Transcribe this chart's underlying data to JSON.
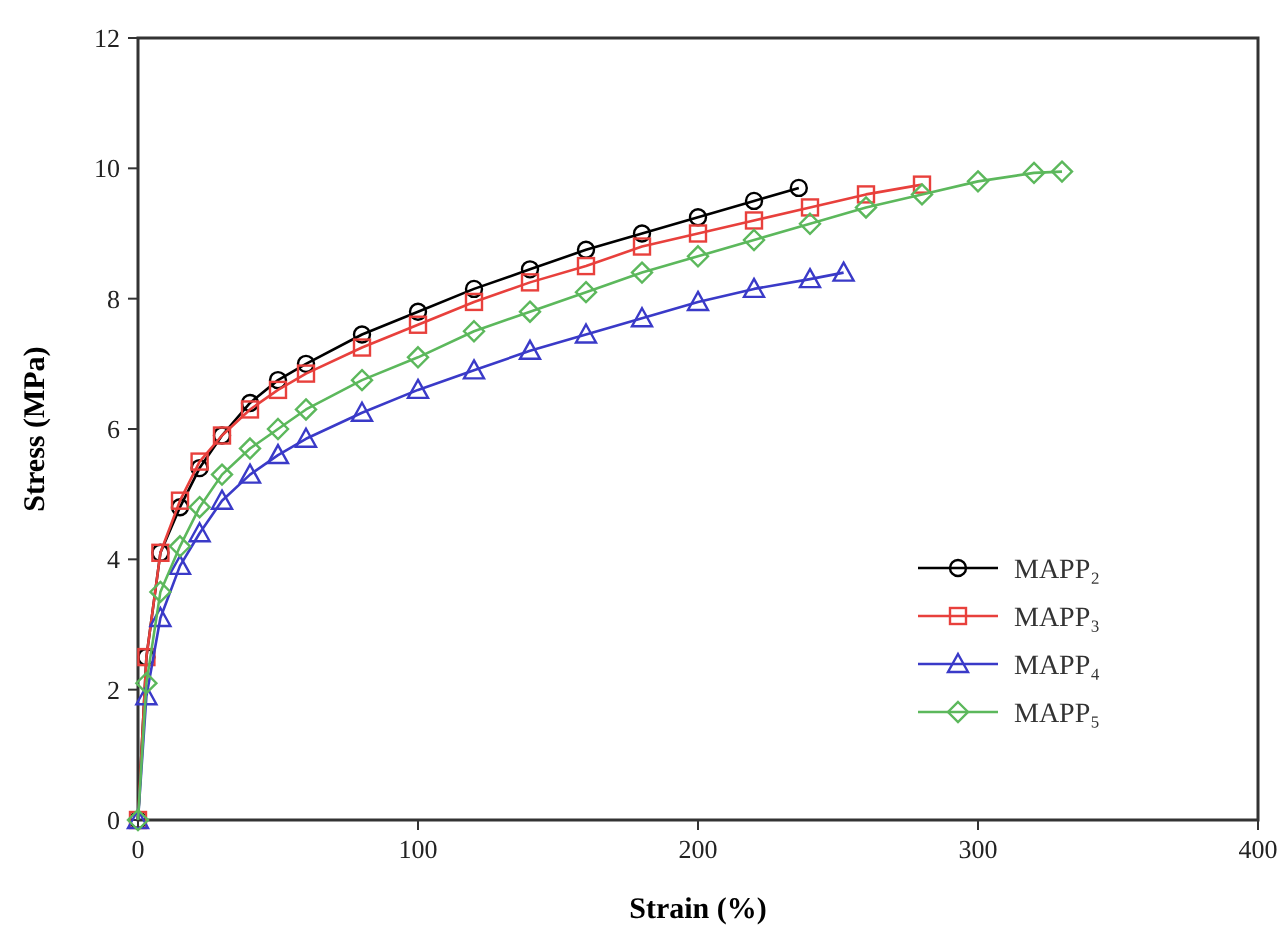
{
  "chart_data": {
    "type": "line",
    "xlabel": "Strain (%)",
    "ylabel": "Stress (MPa)",
    "xlim": [
      0,
      400
    ],
    "xticks": [
      0,
      100,
      200,
      300,
      400
    ],
    "ylim": [
      0,
      12
    ],
    "yticks": [
      0,
      2,
      4,
      6,
      8,
      10,
      12
    ],
    "grid": false,
    "legend": "bottom right",
    "series": [
      {
        "name": "MAPP₂",
        "color": "#000000",
        "marker": "circle",
        "x": [
          0,
          3,
          8,
          15,
          22,
          30,
          40,
          50,
          60,
          80,
          100,
          120,
          140,
          160,
          180,
          200,
          220,
          236
        ],
        "values": [
          0,
          2.5,
          4.1,
          4.8,
          5.4,
          5.9,
          6.4,
          6.75,
          7.0,
          7.45,
          7.8,
          8.15,
          8.45,
          8.75,
          9.0,
          9.25,
          9.5,
          9.7
        ]
      },
      {
        "name": "MAPP₃",
        "color": "#e8403c",
        "marker": "square",
        "x": [
          0,
          3,
          8,
          15,
          22,
          30,
          40,
          50,
          60,
          80,
          100,
          120,
          140,
          160,
          180,
          200,
          220,
          240,
          260,
          280
        ],
        "values": [
          0,
          2.5,
          4.1,
          4.9,
          5.5,
          5.9,
          6.3,
          6.6,
          6.85,
          7.25,
          7.6,
          7.95,
          8.25,
          8.5,
          8.8,
          9.0,
          9.2,
          9.4,
          9.6,
          9.75
        ]
      },
      {
        "name": "MAPP₄",
        "color": "#3a3ac8",
        "marker": "triangle",
        "x": [
          0,
          3,
          8,
          15,
          22,
          30,
          40,
          50,
          60,
          80,
          100,
          120,
          140,
          160,
          180,
          200,
          220,
          240,
          252
        ],
        "values": [
          0,
          1.9,
          3.1,
          3.9,
          4.4,
          4.9,
          5.3,
          5.6,
          5.85,
          6.25,
          6.6,
          6.9,
          7.2,
          7.45,
          7.7,
          7.95,
          8.15,
          8.3,
          8.4
        ]
      },
      {
        "name": "MAPP₅",
        "color": "#5cb85c",
        "marker": "diamond",
        "x": [
          0,
          3,
          8,
          15,
          22,
          30,
          40,
          50,
          60,
          80,
          100,
          120,
          140,
          160,
          180,
          200,
          220,
          240,
          260,
          280,
          300,
          320,
          330
        ],
        "values": [
          0,
          2.1,
          3.5,
          4.2,
          4.8,
          5.3,
          5.7,
          6.0,
          6.3,
          6.75,
          7.1,
          7.5,
          7.8,
          8.1,
          8.4,
          8.65,
          8.9,
          9.15,
          9.4,
          9.6,
          9.8,
          9.93,
          9.95
        ]
      }
    ]
  }
}
